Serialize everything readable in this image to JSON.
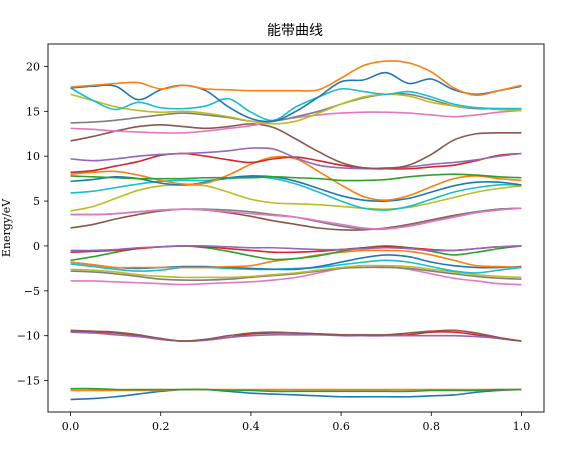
{
  "chart_data": {
    "type": "line",
    "title": "能带曲线",
    "xlabel": "",
    "ylabel": "Energy/eV",
    "xlim": [
      -0.05,
      1.05
    ],
    "ylim": [
      -18.5,
      22.5
    ],
    "xticks": [
      0.0,
      0.2,
      0.4,
      0.6,
      0.8,
      1.0
    ],
    "xtick_labels": [
      "0.0",
      "0.2",
      "0.4",
      "0.6",
      "0.8",
      "1.0"
    ],
    "yticks": [
      -15,
      -10,
      -5,
      0,
      5,
      10,
      15,
      20
    ],
    "ytick_labels": [
      "−15",
      "−10",
      "−5",
      "0",
      "5",
      "10",
      "15",
      "20"
    ],
    "grid": false,
    "legend": "none",
    "x": [
      0.0,
      0.05,
      0.1,
      0.15,
      0.2,
      0.25,
      0.3,
      0.35,
      0.4,
      0.45,
      0.5,
      0.55,
      0.6,
      0.65,
      0.7,
      0.75,
      0.8,
      0.85,
      0.9,
      0.95,
      1.0
    ],
    "series": [
      {
        "color": "#1f77b4",
        "values": [
          -17.1,
          -17.0,
          -16.8,
          -16.5,
          -16.2,
          -16.0,
          -16.0,
          -16.2,
          -16.4,
          -16.5,
          -16.6,
          -16.7,
          -16.8,
          -16.8,
          -16.8,
          -16.8,
          -16.7,
          -16.6,
          -16.3,
          -16.1,
          -16.0
        ]
      },
      {
        "color": "#ff7f0e",
        "values": [
          -16.1,
          -16.1,
          -16.1,
          -16.1,
          -16.1,
          -16.0,
          -16.0,
          -16.0,
          -16.0,
          -16.0,
          -16.0,
          -16.0,
          -16.0,
          -16.0,
          -16.0,
          -16.0,
          -16.0,
          -16.0,
          -16.0,
          -16.0,
          -16.0
        ]
      },
      {
        "color": "#2ca02c",
        "values": [
          -15.9,
          -15.9,
          -16.0,
          -16.0,
          -16.0,
          -16.0,
          -16.0,
          -16.1,
          -16.1,
          -16.2,
          -16.2,
          -16.2,
          -16.2,
          -16.2,
          -16.2,
          -16.2,
          -16.1,
          -16.1,
          -16.1,
          -16.0,
          -16.0
        ]
      },
      {
        "color": "#d62728",
        "values": [
          -9.5,
          -9.6,
          -9.7,
          -10.0,
          -10.4,
          -10.6,
          -10.5,
          -10.2,
          -9.8,
          -9.7,
          -9.7,
          -9.8,
          -9.9,
          -10.0,
          -10.0,
          -9.9,
          -9.6,
          -9.6,
          -9.9,
          -10.3,
          -10.6
        ]
      },
      {
        "color": "#9467bd",
        "values": [
          -9.6,
          -9.7,
          -9.9,
          -10.1,
          -10.4,
          -10.6,
          -10.5,
          -10.2,
          -10.0,
          -9.9,
          -9.9,
          -9.9,
          -10.0,
          -10.0,
          -10.0,
          -10.0,
          -10.0,
          -10.0,
          -10.1,
          -10.3,
          -10.6
        ]
      },
      {
        "color": "#8c564b",
        "values": [
          -9.4,
          -9.5,
          -9.6,
          -9.9,
          -10.3,
          -10.6,
          -10.4,
          -10.0,
          -9.7,
          -9.6,
          -9.7,
          -9.8,
          -9.9,
          -9.9,
          -9.9,
          -9.7,
          -9.5,
          -9.4,
          -9.7,
          -10.2,
          -10.6
        ]
      },
      {
        "color": "#e377c2",
        "values": [
          -3.9,
          -3.9,
          -4.0,
          -4.1,
          -4.2,
          -4.3,
          -4.2,
          -4.1,
          -4.0,
          -3.8,
          -3.5,
          -3.0,
          -2.5,
          -2.2,
          -2.3,
          -2.6,
          -3.1,
          -3.6,
          -3.9,
          -4.2,
          -4.3
        ]
      },
      {
        "color": "#7f7f7f",
        "values": [
          -2.8,
          -2.9,
          -3.1,
          -3.4,
          -3.7,
          -3.8,
          -3.8,
          -3.7,
          -3.5,
          -3.3,
          -3.1,
          -2.8,
          -2.5,
          -2.4,
          -2.4,
          -2.5,
          -2.8,
          -3.1,
          -3.4,
          -3.6,
          -3.7
        ]
      },
      {
        "color": "#bcbd22",
        "values": [
          -2.6,
          -2.7,
          -2.9,
          -3.2,
          -3.4,
          -3.5,
          -3.5,
          -3.5,
          -3.4,
          -3.2,
          -3.0,
          -2.7,
          -2.4,
          -2.2,
          -2.2,
          -2.3,
          -2.6,
          -2.9,
          -3.2,
          -3.4,
          -3.5
        ]
      },
      {
        "color": "#17becf",
        "values": [
          -2.0,
          -2.3,
          -2.6,
          -2.8,
          -2.7,
          -2.4,
          -2.4,
          -2.5,
          -2.6,
          -2.6,
          -2.5,
          -2.4,
          -2.1,
          -1.8,
          -1.6,
          -1.8,
          -2.3,
          -2.8,
          -3.0,
          -2.7,
          -2.4
        ]
      },
      {
        "color": "#1f77b4",
        "values": [
          -1.8,
          -2.1,
          -2.4,
          -2.5,
          -2.4,
          -2.3,
          -2.3,
          -2.4,
          -2.5,
          -2.6,
          -2.6,
          -2.3,
          -1.8,
          -1.3,
          -1.0,
          -1.2,
          -1.8,
          -2.2,
          -2.4,
          -2.4,
          -2.3
        ]
      },
      {
        "color": "#ff7f0e",
        "values": [
          -1.8,
          -2.1,
          -2.4,
          -2.4,
          -2.4,
          -2.4,
          -2.4,
          -2.3,
          -2.2,
          -1.7,
          -1.4,
          -1.0,
          -0.7,
          -0.5,
          -0.5,
          -0.6,
          -1.0,
          -1.6,
          -2.2,
          -2.3,
          -2.4
        ]
      },
      {
        "color": "#2ca02c",
        "values": [
          -1.6,
          -1.2,
          -0.7,
          -0.3,
          -0.1,
          0.0,
          -0.2,
          -0.6,
          -1.1,
          -1.5,
          -1.4,
          -1.1,
          -0.6,
          -0.2,
          0.0,
          -0.2,
          -0.6,
          -1.0,
          -0.7,
          -0.3,
          0.0
        ]
      },
      {
        "color": "#d62728",
        "values": [
          -0.7,
          -0.6,
          -0.5,
          -0.3,
          -0.1,
          0.0,
          -0.1,
          -0.3,
          -0.5,
          -0.7,
          -0.7,
          -0.6,
          -0.4,
          -0.2,
          -0.1,
          -0.2,
          -0.4,
          -0.5,
          -0.3,
          -0.1,
          0.0
        ]
      },
      {
        "color": "#9467bd",
        "values": [
          -0.5,
          -0.5,
          -0.4,
          -0.2,
          -0.1,
          0.0,
          0.0,
          -0.1,
          -0.2,
          -0.2,
          -0.3,
          -0.4,
          -0.4,
          -0.3,
          -0.2,
          -0.3,
          -0.5,
          -0.5,
          -0.3,
          -0.1,
          0.0
        ]
      },
      {
        "color": "#8c564b",
        "values": [
          2.0,
          2.4,
          3.0,
          3.5,
          3.9,
          4.1,
          4.0,
          3.7,
          3.3,
          2.8,
          2.4,
          2.0,
          1.8,
          1.8,
          2.0,
          2.4,
          2.9,
          3.4,
          3.8,
          4.1,
          4.2
        ]
      },
      {
        "color": "#7f7f7f",
        "values": [
          3.5,
          3.5,
          3.6,
          3.8,
          4.0,
          4.1,
          4.1,
          4.0,
          3.8,
          3.5,
          3.2,
          2.7,
          2.2,
          1.9,
          1.9,
          2.3,
          2.8,
          3.3,
          3.8,
          4.1,
          4.2
        ]
      },
      {
        "color": "#e377c2",
        "values": [
          3.5,
          3.5,
          3.6,
          3.8,
          4.0,
          4.1,
          4.0,
          3.8,
          3.6,
          3.4,
          3.2,
          2.8,
          2.4,
          2.0,
          1.9,
          2.2,
          2.7,
          3.2,
          3.7,
          4.0,
          4.2
        ]
      },
      {
        "color": "#bcbd22",
        "values": [
          3.9,
          4.4,
          5.3,
          6.2,
          6.7,
          6.8,
          6.7,
          6.0,
          5.2,
          4.8,
          4.7,
          4.6,
          4.4,
          4.2,
          4.1,
          4.3,
          4.8,
          5.4,
          6.0,
          6.4,
          6.7
        ]
      },
      {
        "color": "#17becf",
        "values": [
          5.9,
          6.1,
          6.5,
          6.9,
          7.2,
          7.3,
          7.3,
          7.5,
          7.7,
          7.5,
          6.9,
          6.0,
          5.0,
          4.2,
          4.0,
          4.4,
          5.2,
          6.0,
          6.5,
          6.8,
          6.8
        ]
      },
      {
        "color": "#1f77b4",
        "values": [
          7.2,
          7.4,
          7.7,
          7.5,
          7.0,
          6.8,
          7.1,
          7.6,
          7.8,
          7.7,
          7.2,
          6.4,
          5.6,
          5.1,
          5.0,
          5.3,
          6.0,
          6.7,
          7.1,
          7.1,
          6.8
        ]
      },
      {
        "color": "#ff7f0e",
        "values": [
          8.0,
          8.2,
          8.3,
          7.9,
          7.3,
          6.9,
          7.0,
          7.9,
          9.1,
          9.9,
          9.7,
          8.3,
          6.8,
          5.5,
          5.1,
          5.6,
          6.6,
          7.5,
          7.8,
          7.5,
          7.3
        ]
      },
      {
        "color": "#2ca02c",
        "values": [
          7.8,
          7.7,
          7.6,
          7.5,
          7.5,
          7.5,
          7.6,
          7.6,
          7.6,
          7.7,
          7.6,
          7.5,
          7.3,
          7.3,
          7.4,
          7.7,
          7.9,
          8.0,
          7.9,
          7.7,
          7.6
        ]
      },
      {
        "color": "#d62728",
        "values": [
          8.2,
          8.4,
          8.9,
          9.4,
          10.1,
          10.3,
          10.0,
          9.6,
          9.3,
          9.7,
          9.9,
          9.5,
          9.0,
          8.7,
          8.6,
          8.6,
          8.8,
          9.0,
          9.5,
          10.1,
          10.3
        ]
      },
      {
        "color": "#9467bd",
        "values": [
          9.7,
          9.5,
          9.7,
          10.0,
          10.2,
          10.3,
          10.4,
          10.6,
          10.9,
          10.8,
          9.8,
          9.0,
          8.7,
          8.6,
          8.7,
          8.8,
          9.1,
          9.3,
          9.6,
          10.0,
          10.3
        ]
      },
      {
        "color": "#8c564b",
        "values": [
          11.7,
          12.2,
          12.8,
          13.3,
          13.5,
          13.3,
          13.1,
          13.3,
          13.6,
          13.2,
          11.9,
          10.5,
          9.3,
          8.7,
          8.6,
          9.0,
          10.2,
          11.8,
          12.5,
          12.6,
          12.6
        ]
      },
      {
        "color": "#e377c2",
        "values": [
          13.1,
          13.0,
          12.8,
          12.7,
          12.6,
          12.6,
          12.8,
          13.1,
          13.4,
          13.9,
          14.3,
          14.6,
          14.8,
          14.9,
          14.9,
          14.8,
          14.6,
          14.4,
          14.6,
          14.9,
          15.1
        ]
      },
      {
        "color": "#7f7f7f",
        "values": [
          13.7,
          13.8,
          14.0,
          14.3,
          14.6,
          14.8,
          14.6,
          14.3,
          13.9,
          13.9,
          14.4,
          15.0,
          15.8,
          16.5,
          16.9,
          16.9,
          16.3,
          15.6,
          15.3,
          15.3,
          15.3
        ]
      },
      {
        "color": "#bcbd22",
        "values": [
          16.9,
          16.2,
          15.5,
          15.1,
          14.9,
          15.0,
          14.8,
          14.4,
          13.9,
          13.6,
          13.9,
          14.8,
          15.8,
          16.6,
          16.9,
          16.7,
          16.0,
          15.6,
          15.4,
          15.2,
          15.1
        ]
      },
      {
        "color": "#17becf",
        "values": [
          17.6,
          16.2,
          15.2,
          16.0,
          15.4,
          15.3,
          15.6,
          16.4,
          14.9,
          14.0,
          15.5,
          16.6,
          17.5,
          17.2,
          16.9,
          17.2,
          16.6,
          15.8,
          15.4,
          15.3,
          15.3
        ]
      },
      {
        "color": "#1f77b4",
        "values": [
          17.6,
          17.8,
          17.8,
          16.3,
          17.4,
          17.9,
          17.3,
          15.5,
          14.2,
          13.9,
          15.0,
          16.6,
          18.3,
          18.5,
          19.3,
          18.1,
          18.6,
          17.4,
          16.9,
          17.3,
          17.8
        ]
      },
      {
        "color": "#ff7f0e",
        "values": [
          17.7,
          17.9,
          18.1,
          18.2,
          17.5,
          17.9,
          17.5,
          17.4,
          17.3,
          17.3,
          17.3,
          17.4,
          18.7,
          20.1,
          20.6,
          20.4,
          19.4,
          17.6,
          16.8,
          17.3,
          17.9
        ]
      }
    ]
  }
}
